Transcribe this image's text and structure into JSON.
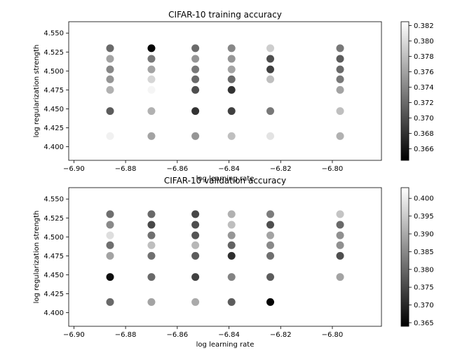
{
  "chart_data": [
    {
      "type": "scatter",
      "title": "CIFAR-10 training accuracy",
      "xlabel": "log learning rate",
      "ylabel": "log regularization strength",
      "xlim": [
        -6.902,
        -6.781
      ],
      "ylim": [
        4.382,
        4.565
      ],
      "xticks": [
        -6.9,
        -6.88,
        -6.86,
        -6.84,
        -6.82,
        -6.8
      ],
      "xtick_labels": [
        "−6.90",
        "−6.88",
        "−6.86",
        "−6.84",
        "−6.82",
        "−6.80"
      ],
      "yticks": [
        4.4,
        4.425,
        4.45,
        4.475,
        4.5,
        4.525,
        4.55
      ],
      "ytick_labels": [
        "4.400",
        "4.425",
        "4.450",
        "4.475",
        "4.500",
        "4.525",
        "4.550"
      ],
      "colorbar": {
        "min": 0.3645,
        "max": 0.3825,
        "ticks": [
          0.366,
          0.368,
          0.37,
          0.372,
          0.374,
          0.376,
          0.378,
          0.38,
          0.382
        ],
        "tick_labels": [
          "0.366",
          "0.368",
          "0.370",
          "0.372",
          "0.374",
          "0.376",
          "0.378",
          "0.380",
          "0.382"
        ]
      },
      "colormap": "gray",
      "grid": false,
      "points": [
        {
          "x": -6.886,
          "y": 4.53,
          "v": 0.372
        },
        {
          "x": -6.886,
          "y": 4.516,
          "v": 0.376
        },
        {
          "x": -6.886,
          "y": 4.502,
          "v": 0.374
        },
        {
          "x": -6.886,
          "y": 4.489,
          "v": 0.375
        },
        {
          "x": -6.886,
          "y": 4.475,
          "v": 0.377
        },
        {
          "x": -6.886,
          "y": 4.447,
          "v": 0.371
        },
        {
          "x": -6.886,
          "y": 4.414,
          "v": 0.3815
        },
        {
          "x": -6.87,
          "y": 4.53,
          "v": 0.3648
        },
        {
          "x": -6.87,
          "y": 4.516,
          "v": 0.373
        },
        {
          "x": -6.87,
          "y": 4.502,
          "v": 0.376
        },
        {
          "x": -6.87,
          "y": 4.489,
          "v": 0.3795
        },
        {
          "x": -6.87,
          "y": 4.475,
          "v": 0.3818
        },
        {
          "x": -6.87,
          "y": 4.447,
          "v": 0.377
        },
        {
          "x": -6.87,
          "y": 4.414,
          "v": 0.376
        },
        {
          "x": -6.853,
          "y": 4.53,
          "v": 0.372
        },
        {
          "x": -6.853,
          "y": 4.516,
          "v": 0.375
        },
        {
          "x": -6.853,
          "y": 4.502,
          "v": 0.373
        },
        {
          "x": -6.853,
          "y": 4.489,
          "v": 0.372
        },
        {
          "x": -6.853,
          "y": 4.475,
          "v": 0.37
        },
        {
          "x": -6.853,
          "y": 4.447,
          "v": 0.368
        },
        {
          "x": -6.853,
          "y": 4.414,
          "v": 0.375
        },
        {
          "x": -6.839,
          "y": 4.53,
          "v": 0.374
        },
        {
          "x": -6.839,
          "y": 4.516,
          "v": 0.375
        },
        {
          "x": -6.839,
          "y": 4.502,
          "v": 0.376
        },
        {
          "x": -6.839,
          "y": 4.489,
          "v": 0.372
        },
        {
          "x": -6.839,
          "y": 4.475,
          "v": 0.368
        },
        {
          "x": -6.839,
          "y": 4.447,
          "v": 0.369
        },
        {
          "x": -6.839,
          "y": 4.414,
          "v": 0.378
        },
        {
          "x": -6.824,
          "y": 4.53,
          "v": 0.379
        },
        {
          "x": -6.824,
          "y": 4.516,
          "v": 0.37
        },
        {
          "x": -6.824,
          "y": 4.502,
          "v": 0.369
        },
        {
          "x": -6.824,
          "y": 4.489,
          "v": 0.378
        },
        {
          "x": -6.824,
          "y": 4.447,
          "v": 0.373
        },
        {
          "x": -6.824,
          "y": 4.414,
          "v": 0.3805
        },
        {
          "x": -6.797,
          "y": 4.53,
          "v": 0.373
        },
        {
          "x": -6.797,
          "y": 4.516,
          "v": 0.371
        },
        {
          "x": -6.797,
          "y": 4.502,
          "v": 0.372
        },
        {
          "x": -6.797,
          "y": 4.489,
          "v": 0.373
        },
        {
          "x": -6.797,
          "y": 4.475,
          "v": 0.376
        },
        {
          "x": -6.797,
          "y": 4.447,
          "v": 0.378
        },
        {
          "x": -6.797,
          "y": 4.414,
          "v": 0.377
        }
      ]
    },
    {
      "type": "scatter",
      "title": "CIFAR-10 validation accuracy",
      "xlabel": "log learning rate",
      "ylabel": "log regularization strength",
      "xlim": [
        -6.902,
        -6.781
      ],
      "ylim": [
        4.382,
        4.565
      ],
      "xticks": [
        -6.9,
        -6.88,
        -6.86,
        -6.84,
        -6.82,
        -6.8
      ],
      "xtick_labels": [
        "−6.90",
        "−6.88",
        "−6.86",
        "−6.84",
        "−6.82",
        "−6.80"
      ],
      "yticks": [
        4.4,
        4.425,
        4.45,
        4.475,
        4.5,
        4.525,
        4.55
      ],
      "ytick_labels": [
        "4.400",
        "4.425",
        "4.450",
        "4.475",
        "4.500",
        "4.525",
        "4.550"
      ],
      "colorbar": {
        "min": 0.364,
        "max": 0.403,
        "ticks": [
          0.365,
          0.37,
          0.375,
          0.38,
          0.385,
          0.39,
          0.395,
          0.4
        ],
        "tick_labels": [
          "0.365",
          "0.370",
          "0.375",
          "0.380",
          "0.385",
          "0.390",
          "0.395",
          "0.400"
        ]
      },
      "colormap": "gray",
      "grid": false,
      "points": [
        {
          "x": -6.886,
          "y": 4.53,
          "v": 0.381
        },
        {
          "x": -6.886,
          "y": 4.516,
          "v": 0.385
        },
        {
          "x": -6.886,
          "y": 4.502,
          "v": 0.398
        },
        {
          "x": -6.886,
          "y": 4.489,
          "v": 0.381
        },
        {
          "x": -6.886,
          "y": 4.475,
          "v": 0.389
        },
        {
          "x": -6.886,
          "y": 4.447,
          "v": 0.366
        },
        {
          "x": -6.886,
          "y": 4.414,
          "v": 0.38
        },
        {
          "x": -6.87,
          "y": 4.53,
          "v": 0.38
        },
        {
          "x": -6.87,
          "y": 4.516,
          "v": 0.375
        },
        {
          "x": -6.87,
          "y": 4.502,
          "v": 0.381
        },
        {
          "x": -6.87,
          "y": 4.489,
          "v": 0.393
        },
        {
          "x": -6.87,
          "y": 4.475,
          "v": 0.381
        },
        {
          "x": -6.87,
          "y": 4.447,
          "v": 0.38
        },
        {
          "x": -6.87,
          "y": 4.414,
          "v": 0.389
        },
        {
          "x": -6.853,
          "y": 4.53,
          "v": 0.375
        },
        {
          "x": -6.853,
          "y": 4.516,
          "v": 0.376
        },
        {
          "x": -6.853,
          "y": 4.502,
          "v": 0.377
        },
        {
          "x": -6.853,
          "y": 4.489,
          "v": 0.392
        },
        {
          "x": -6.853,
          "y": 4.475,
          "v": 0.378
        },
        {
          "x": -6.853,
          "y": 4.447,
          "v": 0.374
        },
        {
          "x": -6.853,
          "y": 4.414,
          "v": 0.39
        },
        {
          "x": -6.839,
          "y": 4.53,
          "v": 0.391
        },
        {
          "x": -6.839,
          "y": 4.516,
          "v": 0.393
        },
        {
          "x": -6.839,
          "y": 4.502,
          "v": 0.387
        },
        {
          "x": -6.839,
          "y": 4.489,
          "v": 0.379
        },
        {
          "x": -6.839,
          "y": 4.475,
          "v": 0.371
        },
        {
          "x": -6.839,
          "y": 4.447,
          "v": 0.384
        },
        {
          "x": -6.839,
          "y": 4.414,
          "v": 0.378
        },
        {
          "x": -6.824,
          "y": 4.53,
          "v": 0.383
        },
        {
          "x": -6.824,
          "y": 4.516,
          "v": 0.376
        },
        {
          "x": -6.824,
          "y": 4.502,
          "v": 0.389
        },
        {
          "x": -6.824,
          "y": 4.489,
          "v": 0.385
        },
        {
          "x": -6.824,
          "y": 4.475,
          "v": 0.381
        },
        {
          "x": -6.824,
          "y": 4.447,
          "v": 0.378
        },
        {
          "x": -6.824,
          "y": 4.414,
          "v": 0.3645
        },
        {
          "x": -6.797,
          "y": 4.53,
          "v": 0.394
        },
        {
          "x": -6.797,
          "y": 4.516,
          "v": 0.38
        },
        {
          "x": -6.797,
          "y": 4.502,
          "v": 0.386
        },
        {
          "x": -6.797,
          "y": 4.489,
          "v": 0.386
        },
        {
          "x": -6.797,
          "y": 4.475,
          "v": 0.376
        },
        {
          "x": -6.797,
          "y": 4.447,
          "v": 0.389
        }
      ]
    }
  ]
}
